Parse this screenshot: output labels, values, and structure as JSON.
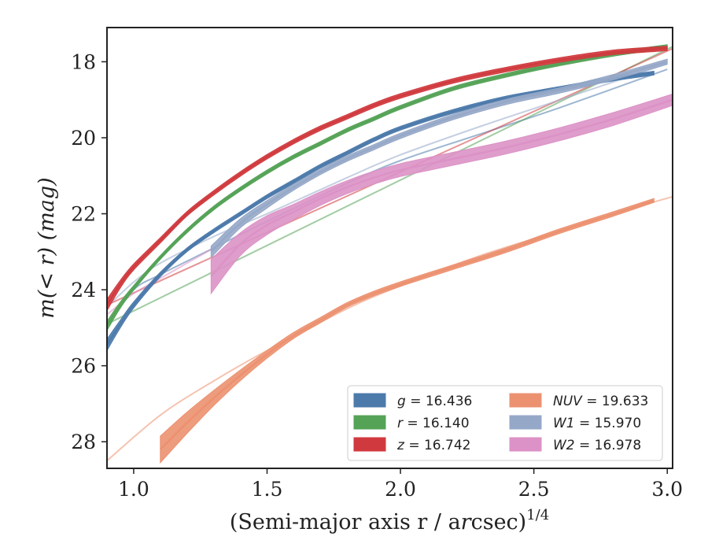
{
  "chart_data": {
    "type": "line",
    "xlabel": "(Semi-major axis r / arcsec)",
    "xlabel_r": "r",
    "xlabel_sup": "1/4",
    "ylabel": "m(< r) (mag)",
    "xlim": [
      0.9,
      3.02
    ],
    "ylim": [
      28.7,
      17.1
    ],
    "y_inverted": true,
    "xticks": [
      1.0,
      1.5,
      2.0,
      2.5,
      3.0
    ],
    "xtick_labels": [
      "1.0",
      "1.5",
      "2.0",
      "2.5",
      "3.0"
    ],
    "yticks": [
      18,
      20,
      22,
      24,
      26,
      28
    ],
    "ytick_labels": [
      "18",
      "20",
      "22",
      "24",
      "26",
      "28"
    ],
    "grid": false,
    "legend_position": "lower-right",
    "series": [
      {
        "name": "g = 16.436",
        "band": "g",
        "value": "16.436",
        "color": "#4c7aab",
        "fit": {
          "x": [
            0.9,
            1.0,
            1.1,
            1.3,
            1.5,
            1.8,
            2.0,
            2.3,
            2.6,
            3.0
          ],
          "y": [
            24.9,
            24.0,
            23.6,
            22.9,
            22.2,
            21.2,
            20.6,
            19.9,
            19.2,
            18.2
          ]
        },
        "x": [
          0.9,
          0.95,
          1.0,
          1.1,
          1.2,
          1.3,
          1.4,
          1.5,
          1.6,
          1.7,
          1.8,
          1.9,
          2.0,
          2.2,
          2.4,
          2.6,
          2.8,
          2.95
        ],
        "y": [
          25.45,
          24.9,
          24.4,
          23.6,
          22.95,
          22.45,
          22.0,
          21.55,
          21.15,
          20.75,
          20.4,
          20.05,
          19.75,
          19.3,
          18.95,
          18.7,
          18.45,
          18.3
        ],
        "err": [
          0.15,
          0.1,
          0.08,
          0.06,
          0.05,
          0.05,
          0.05,
          0.05,
          0.05,
          0.05,
          0.05,
          0.05,
          0.05,
          0.05,
          0.05,
          0.05,
          0.05,
          0.05
        ]
      },
      {
        "name": "r = 16.140",
        "band": "r",
        "value": "16.140",
        "color": "#55a357",
        "fit": {
          "x": [
            0.9,
            3.02
          ],
          "y": [
            24.9,
            17.6
          ]
        },
        "x": [
          0.9,
          0.95,
          1.0,
          1.1,
          1.2,
          1.3,
          1.4,
          1.5,
          1.6,
          1.7,
          1.8,
          1.9,
          2.0,
          2.2,
          2.4,
          2.6,
          2.8,
          3.0
        ],
        "y": [
          24.95,
          24.4,
          23.95,
          23.15,
          22.45,
          21.85,
          21.35,
          20.9,
          20.5,
          20.15,
          19.8,
          19.5,
          19.2,
          18.7,
          18.35,
          18.05,
          17.8,
          17.6
        ],
        "err": [
          0.12,
          0.08,
          0.06,
          0.05,
          0.05,
          0.05,
          0.05,
          0.05,
          0.05,
          0.05,
          0.05,
          0.05,
          0.05,
          0.05,
          0.05,
          0.05,
          0.05,
          0.05
        ]
      },
      {
        "name": "z = 16.742",
        "band": "z",
        "value": "16.742",
        "color": "#d03a3e",
        "fit": {
          "x": [
            0.9,
            3.02
          ],
          "y": [
            24.4,
            17.65
          ]
        },
        "x": [
          0.9,
          0.95,
          1.0,
          1.1,
          1.2,
          1.3,
          1.4,
          1.5,
          1.6,
          1.7,
          1.8,
          1.9,
          2.0,
          2.2,
          2.4,
          2.6,
          2.8,
          3.0
        ],
        "y": [
          24.4,
          23.85,
          23.4,
          22.7,
          22.0,
          21.45,
          20.95,
          20.5,
          20.1,
          19.75,
          19.45,
          19.15,
          18.9,
          18.5,
          18.2,
          17.95,
          17.75,
          17.65
        ],
        "err": [
          0.15,
          0.1,
          0.08,
          0.07,
          0.06,
          0.06,
          0.06,
          0.06,
          0.06,
          0.06,
          0.06,
          0.06,
          0.06,
          0.06,
          0.06,
          0.06,
          0.06,
          0.06
        ]
      },
      {
        "name": "NUV = 19.633",
        "band": "NUV",
        "value": "19.633",
        "color": "#ec9170",
        "fit": {
          "x": [
            0.9,
            1.1,
            1.3,
            1.5,
            1.8,
            2.0,
            2.3,
            2.6,
            2.8,
            3.02
          ],
          "y": [
            28.5,
            27.3,
            26.4,
            25.6,
            24.5,
            23.9,
            23.1,
            22.45,
            22.0,
            21.55
          ]
        },
        "x": [
          1.1,
          1.2,
          1.3,
          1.4,
          1.5,
          1.6,
          1.7,
          1.8,
          1.9,
          2.0,
          2.2,
          2.4,
          2.6,
          2.8,
          2.95
        ],
        "y": [
          28.2,
          27.5,
          26.85,
          26.25,
          25.7,
          25.2,
          24.8,
          24.4,
          24.1,
          23.85,
          23.4,
          22.95,
          22.45,
          22.0,
          21.65
        ],
        "err": [
          0.35,
          0.28,
          0.2,
          0.14,
          0.1,
          0.08,
          0.07,
          0.06,
          0.06,
          0.06,
          0.06,
          0.06,
          0.06,
          0.06,
          0.05
        ]
      },
      {
        "name": "W1 = 15.970",
        "band": "W1",
        "value": "15.970",
        "color": "#96a8c8",
        "fit": {
          "x": [
            0.9,
            1.0,
            1.1,
            1.3,
            1.5,
            1.8,
            2.0,
            2.3,
            2.6,
            3.0
          ],
          "y": [
            24.45,
            23.8,
            23.3,
            22.6,
            22.0,
            21.05,
            20.45,
            19.7,
            19.0,
            18.05
          ]
        },
        "x": [
          1.29,
          1.4,
          1.5,
          1.6,
          1.7,
          1.8,
          1.9,
          2.0,
          2.2,
          2.4,
          2.6,
          2.8,
          3.0
        ],
        "y": [
          23.0,
          22.25,
          21.75,
          21.3,
          20.9,
          20.55,
          20.25,
          19.95,
          19.45,
          19.05,
          18.75,
          18.4,
          18.0
        ],
        "err": [
          0.15,
          0.12,
          0.1,
          0.08,
          0.07,
          0.07,
          0.07,
          0.07,
          0.07,
          0.07,
          0.07,
          0.07,
          0.07
        ]
      },
      {
        "name": "W2 = 16.978",
        "band": "W2",
        "value": "16.978",
        "color": "#dc92c6",
        "fit": {
          "x": [
            0.9,
            1.0,
            1.1,
            1.2,
            1.3
          ],
          "y": [
            24.65,
            24.1,
            23.7,
            23.3,
            22.9
          ]
        },
        "x": [
          1.29,
          1.4,
          1.5,
          1.6,
          1.7,
          1.8,
          1.9,
          2.0,
          2.2,
          2.4,
          2.6,
          2.8,
          3.02
        ],
        "y": [
          23.65,
          22.8,
          22.3,
          21.95,
          21.6,
          21.3,
          21.05,
          20.85,
          20.55,
          20.25,
          19.9,
          19.5,
          19.0
        ],
        "err": [
          0.45,
          0.3,
          0.25,
          0.2,
          0.18,
          0.17,
          0.17,
          0.17,
          0.17,
          0.17,
          0.17,
          0.17,
          0.15
        ]
      }
    ]
  }
}
